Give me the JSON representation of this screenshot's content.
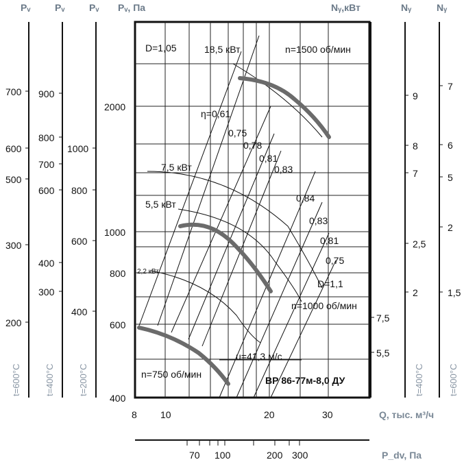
{
  "chart_data": {
    "type": "line",
    "model_label": "ВР 86-77м-8,0 ДУ",
    "xlabel": "Q, тыс. м³/ч",
    "x_ticks": [
      "8",
      "10",
      "20",
      "30"
    ],
    "ylabel": "Pᵥ, Па",
    "y_ticks": [
      "400",
      "600",
      "800",
      "1000",
      "2000"
    ],
    "pdv_label": "P_dv, Па",
    "pdv_ticks": [
      "70",
      "100",
      "200",
      "300"
    ],
    "diameter_labels": [
      "D=1,05",
      "D=1,1"
    ],
    "speed_labels": [
      "n=1500 об/мин",
      "n=1000 об/мин",
      "n=750 об/мин"
    ],
    "power_labels": [
      "18,5 кВт",
      "7,5 кВт",
      "5,5 кВт",
      "2,2 кВт"
    ],
    "efficiency_labels": [
      "η=0,61",
      "0,75",
      "0,78",
      "0,81",
      "0,83",
      "0,84",
      "0,83",
      "0,81",
      "0,75"
    ],
    "velocity_label": "u=41,3 м/с",
    "left_scales": [
      {
        "title": "Pᵥ",
        "temperature": "t=600°C",
        "ticks": [
          "700",
          "600",
          "500",
          "300",
          "200"
        ]
      },
      {
        "title": "Pᵥ",
        "temperature": "t=400°C",
        "ticks": [
          "900",
          "800",
          "700",
          "600",
          "400",
          "300"
        ]
      },
      {
        "title": "Pᵥ",
        "temperature": "t=200°C",
        "ticks": [
          "1000",
          "800",
          "600",
          "400"
        ]
      }
    ],
    "right_scales": [
      {
        "title": "Nᵧ,кВт",
        "temperature": "",
        "ticks": [
          "7,5",
          "5,5"
        ]
      },
      {
        "title": "Nᵧ",
        "temperature": "t=400°C",
        "ticks": [
          "9",
          "8",
          "7",
          "2,5",
          "2"
        ]
      },
      {
        "title": "Nᵧ",
        "temperature": "t=600°C",
        "ticks": [
          "7",
          "6",
          "5",
          "2",
          "1,5"
        ]
      }
    ],
    "series": [
      {
        "name": "n=1500 об/мин",
        "x": [
          16,
          20,
          25,
          30
        ],
        "y": [
          2400,
          2250,
          1950,
          1650
        ]
      },
      {
        "name": "n=1000 об/мин",
        "x": [
          11,
          14,
          18,
          22
        ],
        "y": [
          1050,
          1030,
          920,
          720
        ]
      },
      {
        "name": "n=750 об/мин",
        "x": [
          8,
          11,
          14,
          16
        ],
        "y": [
          590,
          540,
          490,
          430
        ]
      }
    ]
  }
}
